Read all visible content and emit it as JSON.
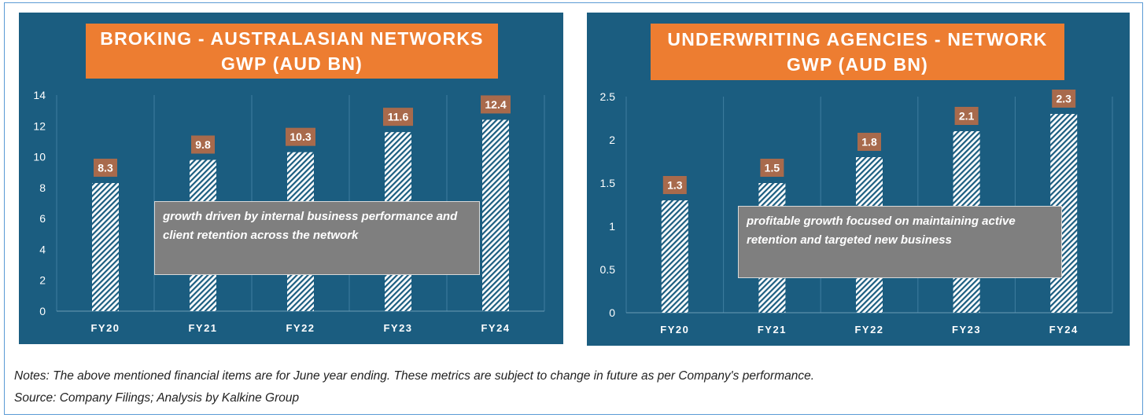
{
  "chart_data": [
    {
      "type": "bar",
      "title": [
        "BROKING - AUSTRALASIAN NETWORKS",
        "GWP (AUD BN)"
      ],
      "categories": [
        "FY20",
        "FY21",
        "FY22",
        "FY23",
        "FY24"
      ],
      "values": [
        8.3,
        9.8,
        10.3,
        11.6,
        12.4
      ],
      "data_labels": [
        "8.3",
        "9.8",
        "10.3",
        "11.6",
        "12.4"
      ],
      "ylim": [
        0,
        14
      ],
      "yticks": [
        "0",
        "2",
        "4",
        "6",
        "8",
        "10",
        "12",
        "14"
      ],
      "ytick_values": [
        0,
        2,
        4,
        6,
        8,
        10,
        12,
        14
      ],
      "grid": "vertical",
      "annotation": "growth driven by internal business performance and client retention across the network"
    },
    {
      "type": "bar",
      "title": [
        "UNDERWRITING AGENCIES - NETWORK",
        "GWP (AUD BN)"
      ],
      "categories": [
        "FY20",
        "FY21",
        "FY22",
        "FY23",
        "FY24"
      ],
      "values": [
        1.3,
        1.5,
        1.8,
        2.1,
        2.3
      ],
      "data_labels": [
        "1.3",
        "1.5",
        "1.8",
        "2.1",
        "2.3"
      ],
      "ylim": [
        0,
        2.5
      ],
      "yticks": [
        "0",
        "0.5",
        "1",
        "1.5",
        "2",
        "2.5"
      ],
      "ytick_values": [
        0,
        0.5,
        1,
        1.5,
        2,
        2.5
      ],
      "grid": "vertical",
      "annotation": "profitable growth focused on maintaining active retention and targeted new business"
    }
  ],
  "footer": {
    "notes": "Notes: The above mentioned financial items are for June year ending. These metrics are subject to change in future as per Company's performance.",
    "source": "Source: Company Filings; Analysis by Kalkine Group"
  },
  "colors": {
    "panel_bg": "#1b5d80",
    "title_bg": "#ed7d31",
    "label_bg": "#a86a4c",
    "bar_stripe": "#1b5d80",
    "bar_fill": "#ffffff",
    "note_bg": "#7f7f7f"
  }
}
